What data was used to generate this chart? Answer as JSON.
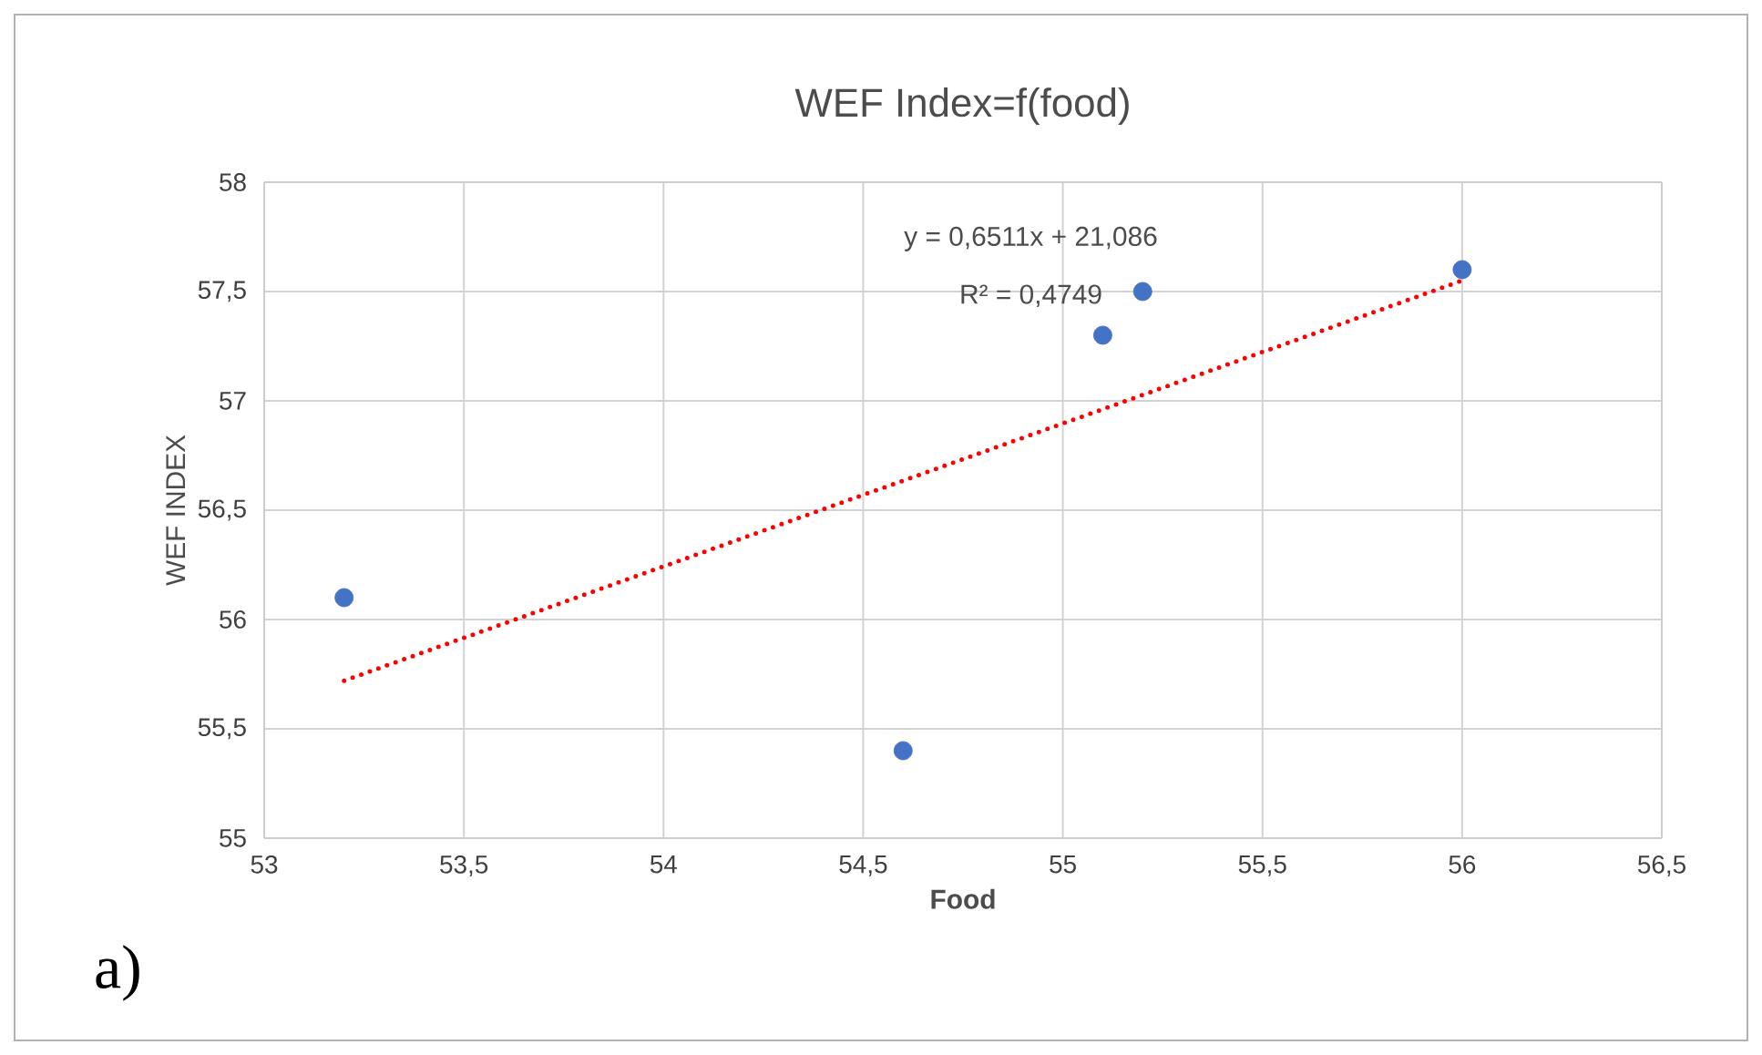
{
  "chart_data": {
    "type": "scatter",
    "title": "WEF Index=f(food)",
    "xlabel": "Food",
    "ylabel": "WEF INDEX",
    "series": [
      {
        "color": "#4472c4",
        "x": [
          53.2,
          54.6,
          55.1,
          55.2,
          56
        ],
        "values": [
          56.1,
          55.4,
          57.3,
          57.5,
          57.6
        ]
      },
      {
        "type": "line",
        "color": "#ff0000",
        "line_style": "dotted",
        "marker": "none",
        "x": [
          53.2,
          56
        ],
        "values": [
          55.72,
          57.55
        ]
      }
    ],
    "xlim": [
      53,
      56.5
    ],
    "ylim": [
      55,
      58
    ],
    "xticks": [
      53,
      {
        "value": 53.5,
        "label": "53,5"
      },
      54,
      {
        "value": 54.5,
        "label": "54,5"
      },
      55,
      {
        "value": 55.5,
        "label": "55,5"
      },
      56,
      {
        "value": 56.5,
        "label": "56,5"
      }
    ],
    "yticks": [
      55,
      {
        "value": 55.5,
        "label": "55,5"
      },
      56,
      {
        "value": 56.5,
        "label": "56,5"
      },
      57,
      {
        "value": 57.5,
        "label": "57,5"
      },
      58
    ],
    "grid": true,
    "marker": "circle",
    "annotations": [
      "y = 0,6511x + 21,086",
      "R² = 0,4749",
      "a)"
    ]
  }
}
